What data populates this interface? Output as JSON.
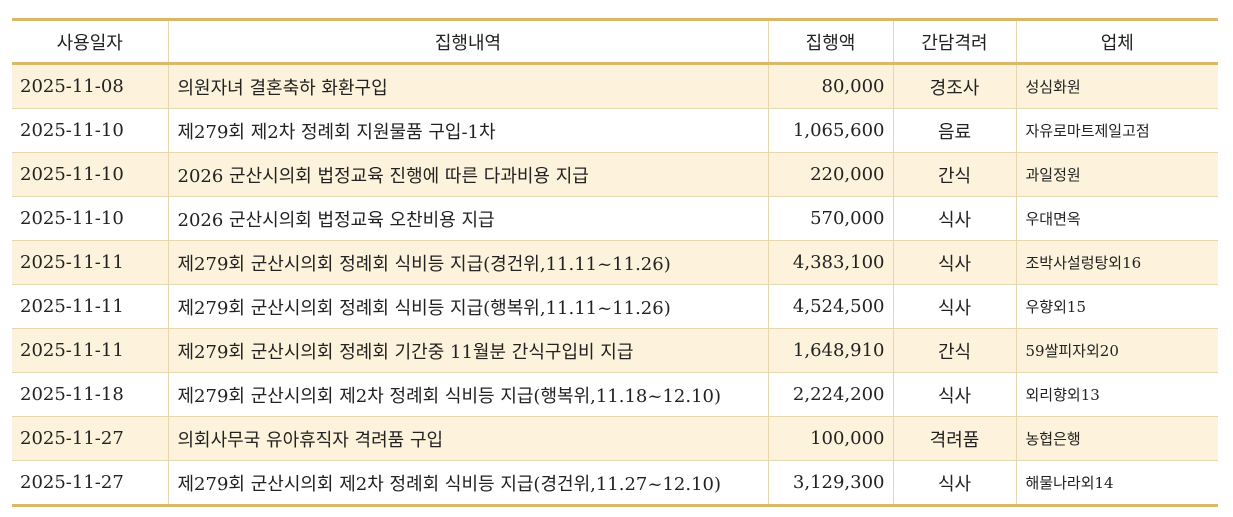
{
  "table": {
    "headers": {
      "date": "사용일자",
      "description": "집행내역",
      "amount": "집행액",
      "category": "간담격려",
      "vendor": "업체"
    },
    "rows": [
      {
        "date": "2025-11-08",
        "description": "의원자녀 결혼축하 화환구입",
        "amount": "80,000",
        "category": "경조사",
        "vendor": "성심화원"
      },
      {
        "date": "2025-11-10",
        "description": "제279회 제2차 정례회 지원물품 구입-1차",
        "amount": "1,065,600",
        "category": "음료",
        "vendor": "자유로마트제일고점"
      },
      {
        "date": "2025-11-10",
        "description": "2026 군산시의회 법정교육 진행에 따른 다과비용 지급",
        "amount": "220,000",
        "category": "간식",
        "vendor": "과일정원"
      },
      {
        "date": "2025-11-10",
        "description": "2026 군산시의회 법정교육 오찬비용 지급",
        "amount": "570,000",
        "category": "식사",
        "vendor": "우대면옥"
      },
      {
        "date": "2025-11-11",
        "description": "제279회 군산시의회 정례회 식비등 지급(경건위,11.11~11.26)",
        "amount": "4,383,100",
        "category": "식사",
        "vendor": "조박사설렁탕외16"
      },
      {
        "date": "2025-11-11",
        "description": "제279회 군산시의회 정례회 식비등 지급(행복위,11.11~11.26)",
        "amount": "4,524,500",
        "category": "식사",
        "vendor": "우향외15"
      },
      {
        "date": "2025-11-11",
        "description": "제279회 군산시의회 정례회 기간중 11월분 간식구입비 지급",
        "amount": "1,648,910",
        "category": "간식",
        "vendor": "59쌀피자외20"
      },
      {
        "date": "2025-11-18",
        "description": "제279회 군산시의회 제2차 정례회 식비등 지급(행복위,11.18~12.10)",
        "amount": "2,224,200",
        "category": "식사",
        "vendor": "외리향외13"
      },
      {
        "date": "2025-11-27",
        "description": "의회사무국 유아휴직자 격려품 구입",
        "amount": "100,000",
        "category": "격려품",
        "vendor": "농협은행"
      },
      {
        "date": "2025-11-27",
        "description": "제279회 군산시의회 제2차 정례회 식비등 지급(경건위,11.27~12.10)",
        "amount": "3,129,300",
        "category": "식사",
        "vendor": "해물나라외14"
      }
    ]
  }
}
